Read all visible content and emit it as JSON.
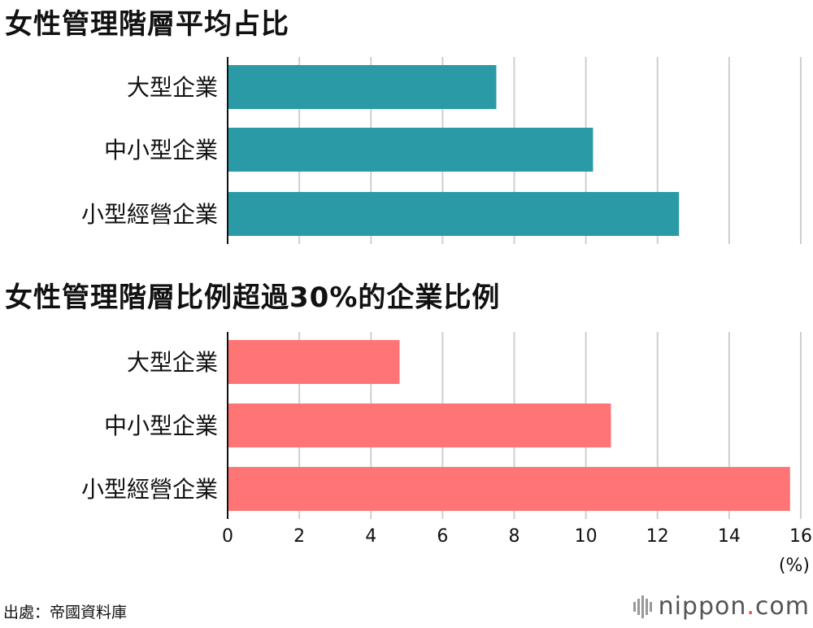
{
  "chart_data": [
    {
      "type": "bar",
      "orientation": "horizontal",
      "title": "女性管理階層平均占比",
      "categories": [
        "大型企業",
        "中小型企業",
        "小型經營企業"
      ],
      "values": [
        7.5,
        10.2,
        12.6
      ],
      "color": "#2a9ba6",
      "xlim": [
        0,
        16
      ],
      "grid": true
    },
    {
      "type": "bar",
      "orientation": "horizontal",
      "title": "女性管理階層比例超過30%的企業比例",
      "categories": [
        "大型企業",
        "中小型企業",
        "小型經營企業"
      ],
      "values": [
        4.8,
        10.7,
        15.7
      ],
      "color": "#ff7474",
      "xlim": [
        0,
        16
      ],
      "grid": true
    }
  ],
  "axis": {
    "ticks": [
      "0",
      "2",
      "4",
      "6",
      "8",
      "10",
      "12",
      "14",
      "16"
    ],
    "unit": "(%)"
  },
  "source": "出處：帝國資料庫",
  "logo": {
    "main": "nippon",
    "dot": ".",
    "suffix": "com"
  }
}
